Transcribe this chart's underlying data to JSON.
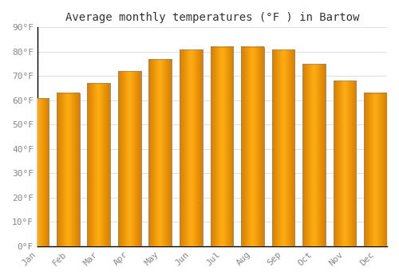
{
  "months": [
    "Jan",
    "Feb",
    "Mar",
    "Apr",
    "May",
    "Jun",
    "Jul",
    "Aug",
    "Sep",
    "Oct",
    "Nov",
    "Dec"
  ],
  "values": [
    61,
    63,
    67,
    72,
    77,
    81,
    82,
    82,
    81,
    75,
    68,
    63
  ],
  "bar_color": "#FFA500",
  "bar_edge_color": "#888888",
  "title": "Average monthly temperatures (°F ) in Bartow",
  "ylim": [
    0,
    90
  ],
  "yticks": [
    0,
    10,
    20,
    30,
    40,
    50,
    60,
    70,
    80,
    90
  ],
  "ytick_labels": [
    "0°F",
    "10°F",
    "20°F",
    "30°F",
    "40°F",
    "50°F",
    "60°F",
    "70°F",
    "80°F",
    "90°F"
  ],
  "background_color": "#ffffff",
  "grid_color": "#e0e0e0",
  "title_fontsize": 10,
  "tick_fontsize": 8,
  "tick_font_color": "#888888"
}
